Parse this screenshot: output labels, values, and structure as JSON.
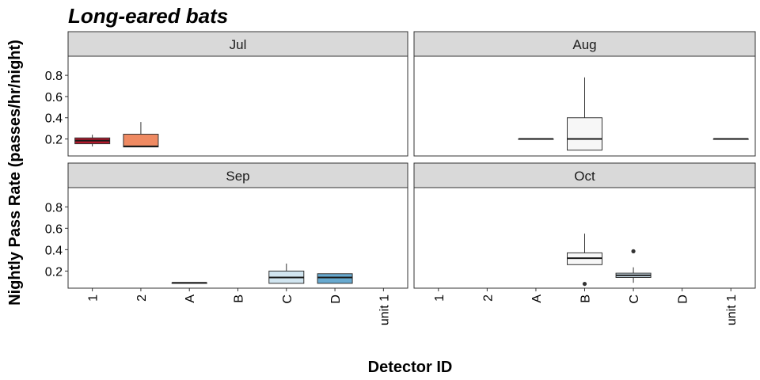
{
  "chart_data": {
    "type": "boxplot",
    "title": "Long-eared bats",
    "xlabel": "Detector ID",
    "ylabel": "Nightly Pass Rate (passes/hr/night)",
    "categories": [
      "1",
      "2",
      "A",
      "B",
      "C",
      "D",
      "unit 1"
    ],
    "y_ticks": [
      0.2,
      0.4,
      0.6,
      0.8
    ],
    "ylim": [
      0.04,
      0.98
    ],
    "grid": false,
    "layout": "2x2 facets",
    "shared_axes": true,
    "colors": {
      "1": "#b2182b",
      "2": "#ef8a62",
      "A": "#f7f7f7",
      "B": "#f7f7f7",
      "C": "#d1e5f0",
      "D": "#67a9cf",
      "unit 1": "#f7f7f7"
    },
    "panels": [
      {
        "label": "Jul",
        "boxes": [
          {
            "category": "1",
            "min": 0.13,
            "q1": 0.155,
            "median": 0.185,
            "q3": 0.21,
            "max": 0.24,
            "outliers": []
          },
          {
            "category": "2",
            "min": 0.125,
            "q1": 0.125,
            "median": 0.13,
            "q3": 0.245,
            "max": 0.36,
            "outliers": []
          }
        ]
      },
      {
        "label": "Aug",
        "boxes": [
          {
            "category": "A",
            "min": 0.2,
            "q1": 0.2,
            "median": 0.2,
            "q3": 0.2,
            "max": 0.2,
            "outliers": []
          },
          {
            "category": "B",
            "min": 0.095,
            "q1": 0.095,
            "median": 0.2,
            "q3": 0.4,
            "max": 0.78,
            "outliers": []
          },
          {
            "category": "unit 1",
            "min": 0.2,
            "q1": 0.2,
            "median": 0.2,
            "q3": 0.2,
            "max": 0.2,
            "outliers": []
          }
        ]
      },
      {
        "label": "Sep",
        "boxes": [
          {
            "category": "A",
            "min": 0.085,
            "q1": 0.085,
            "median": 0.09,
            "q3": 0.09,
            "max": 0.09,
            "outliers": []
          },
          {
            "category": "C",
            "min": 0.085,
            "q1": 0.085,
            "median": 0.14,
            "q3": 0.2,
            "max": 0.27,
            "outliers": []
          },
          {
            "category": "D",
            "min": 0.085,
            "q1": 0.085,
            "median": 0.14,
            "q3": 0.175,
            "max": 0.175,
            "outliers": []
          }
        ]
      },
      {
        "label": "Oct",
        "boxes": [
          {
            "category": "B",
            "min": 0.26,
            "q1": 0.26,
            "median": 0.32,
            "q3": 0.37,
            "max": 0.55,
            "outliers": [
              0.08
            ]
          },
          {
            "category": "C",
            "min": 0.09,
            "q1": 0.14,
            "median": 0.16,
            "q3": 0.18,
            "max": 0.235,
            "outliers": [
              0.385
            ]
          }
        ]
      }
    ]
  }
}
